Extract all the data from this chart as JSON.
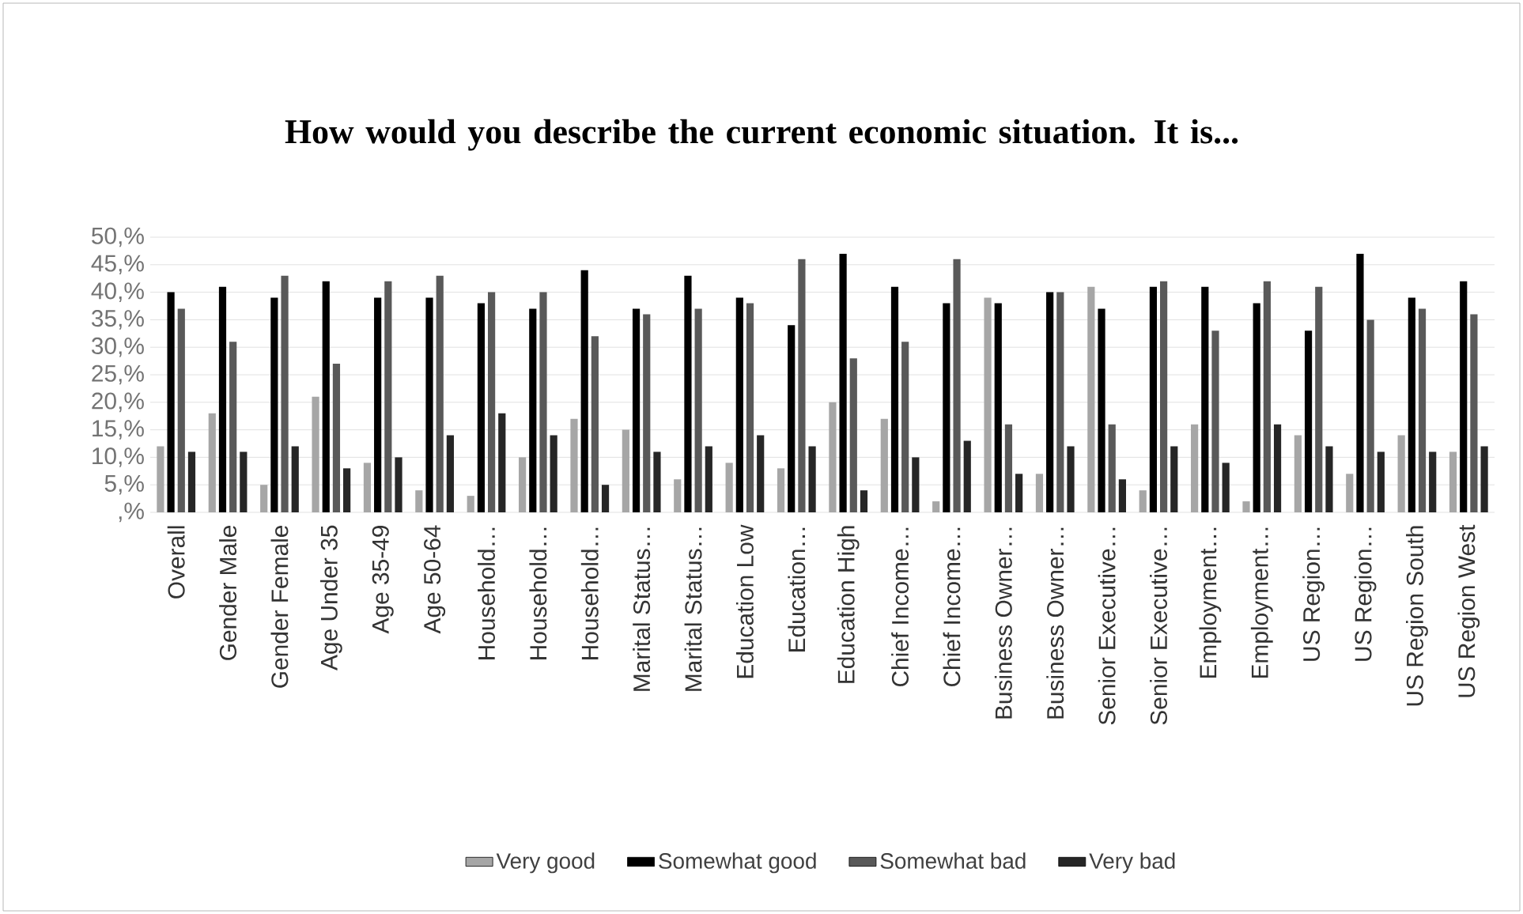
{
  "chart_data": {
    "type": "bar",
    "title": "How would you describe the current economic situation. It is...",
    "categories": [
      "Overall",
      "Gender Male",
      "Gender Female",
      "Age Under 35",
      "Age 35-49",
      "Age 50-64",
      "Household…",
      "Household…",
      "Household…",
      "Marital Status…",
      "Marital Status…",
      "Education Low",
      "Education…",
      "Education High",
      "Chief Income…",
      "Chief Income…",
      "Business Owner…",
      "Business Owner…",
      "Senior Executive…",
      "Senior Executive…",
      "Employment…",
      "Employment…",
      "US Region…",
      "US Region…",
      "US Region South",
      "US Region West"
    ],
    "series": [
      {
        "name": "Very good",
        "color": "#a6a6a6",
        "values": [
          12,
          18,
          5,
          21,
          9,
          4,
          3,
          10,
          17,
          15,
          6,
          9,
          8,
          20,
          17,
          2,
          39,
          7,
          41,
          4,
          16,
          2,
          14,
          7,
          14,
          11
        ]
      },
      {
        "name": "Somewhat good",
        "color": "#000000",
        "values": [
          40,
          41,
          39,
          42,
          39,
          39,
          38,
          37,
          44,
          37,
          43,
          39,
          34,
          47,
          41,
          38,
          38,
          40,
          37,
          41,
          41,
          38,
          33,
          47,
          39,
          42
        ]
      },
      {
        "name": "Somewhat bad",
        "color": "#595959",
        "values": [
          37,
          31,
          43,
          27,
          42,
          43,
          40,
          40,
          32,
          36,
          37,
          38,
          46,
          28,
          31,
          46,
          16,
          40,
          16,
          42,
          33,
          42,
          41,
          35,
          37,
          36
        ]
      },
      {
        "name": "Very bad",
        "color": "#262626",
        "values": [
          11,
          11,
          12,
          8,
          10,
          14,
          18,
          14,
          5,
          11,
          12,
          14,
          12,
          4,
          10,
          13,
          7,
          12,
          6,
          12,
          9,
          16,
          12,
          11,
          11,
          12
        ]
      }
    ],
    "ylim": [
      0,
      50
    ],
    "yticks": [
      {
        "value": 0,
        "label": ",%"
      },
      {
        "value": 5,
        "label": "5,%"
      },
      {
        "value": 10,
        "label": "10,%"
      },
      {
        "value": 15,
        "label": "15,%"
      },
      {
        "value": 20,
        "label": "20,%"
      },
      {
        "value": 25,
        "label": "25,%"
      },
      {
        "value": 30,
        "label": "30,%"
      },
      {
        "value": 35,
        "label": "35,%"
      },
      {
        "value": 40,
        "label": "40,%"
      },
      {
        "value": 45,
        "label": "45,%"
      },
      {
        "value": 50,
        "label": "50,%"
      }
    ],
    "grid": "y",
    "legend": "bottom"
  }
}
